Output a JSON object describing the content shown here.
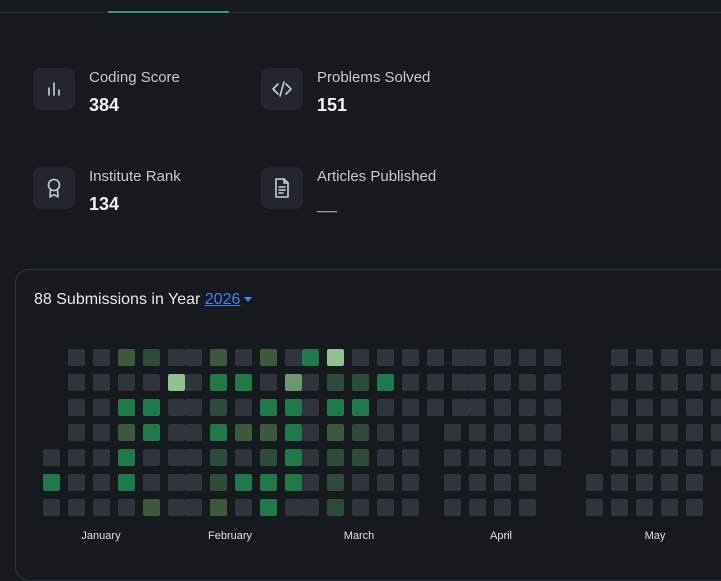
{
  "stats": [
    {
      "label": "Coding Score",
      "value": "384",
      "icon": "bar-chart-icon"
    },
    {
      "label": "Problems Solved",
      "value": "151",
      "icon": "code-icon"
    },
    {
      "label": "Institute Rank",
      "value": "134",
      "icon": "award-icon"
    },
    {
      "label": "Articles Published",
      "value": "__",
      "icon": "document-icon"
    }
  ],
  "submissions": {
    "prefix": "88 Submissions in Year",
    "year": "2026"
  },
  "colors": {
    "empty": "#30343b",
    "level1": "#2e4a38",
    "level2": "#3c5a3b",
    "level3": "#1f7a4a",
    "level4": "#6a9a6a",
    "level5": "#8fc28f"
  },
  "heatmap": {
    "months": [
      {
        "name": "January",
        "rows": [
          "-00210",
          "-00005",
          "-00330",
          "-00230",
          "000300",
          "300300",
          "000020"
        ]
      },
      {
        "name": "February",
        "rows": [
          "02020",
          "03304",
          "01033",
          "03223",
          "01013",
          "01333",
          "02030"
        ]
      },
      {
        "name": "March",
        "rows": [
          "3500000",
          "0113000",
          "0330000",
          "02100",
          "01100",
          "01000",
          "01000"
        ]
      },
      {
        "name": "April",
        "rows": [
          "-0000",
          "-0000",
          "-0000",
          "00000",
          "00000",
          "0000",
          "0000"
        ]
      },
      {
        "name": "May",
        "rows": [
          "-00000",
          "-00000",
          "-00000",
          "-00000",
          "-00000",
          "00000",
          "00000"
        ]
      }
    ]
  }
}
